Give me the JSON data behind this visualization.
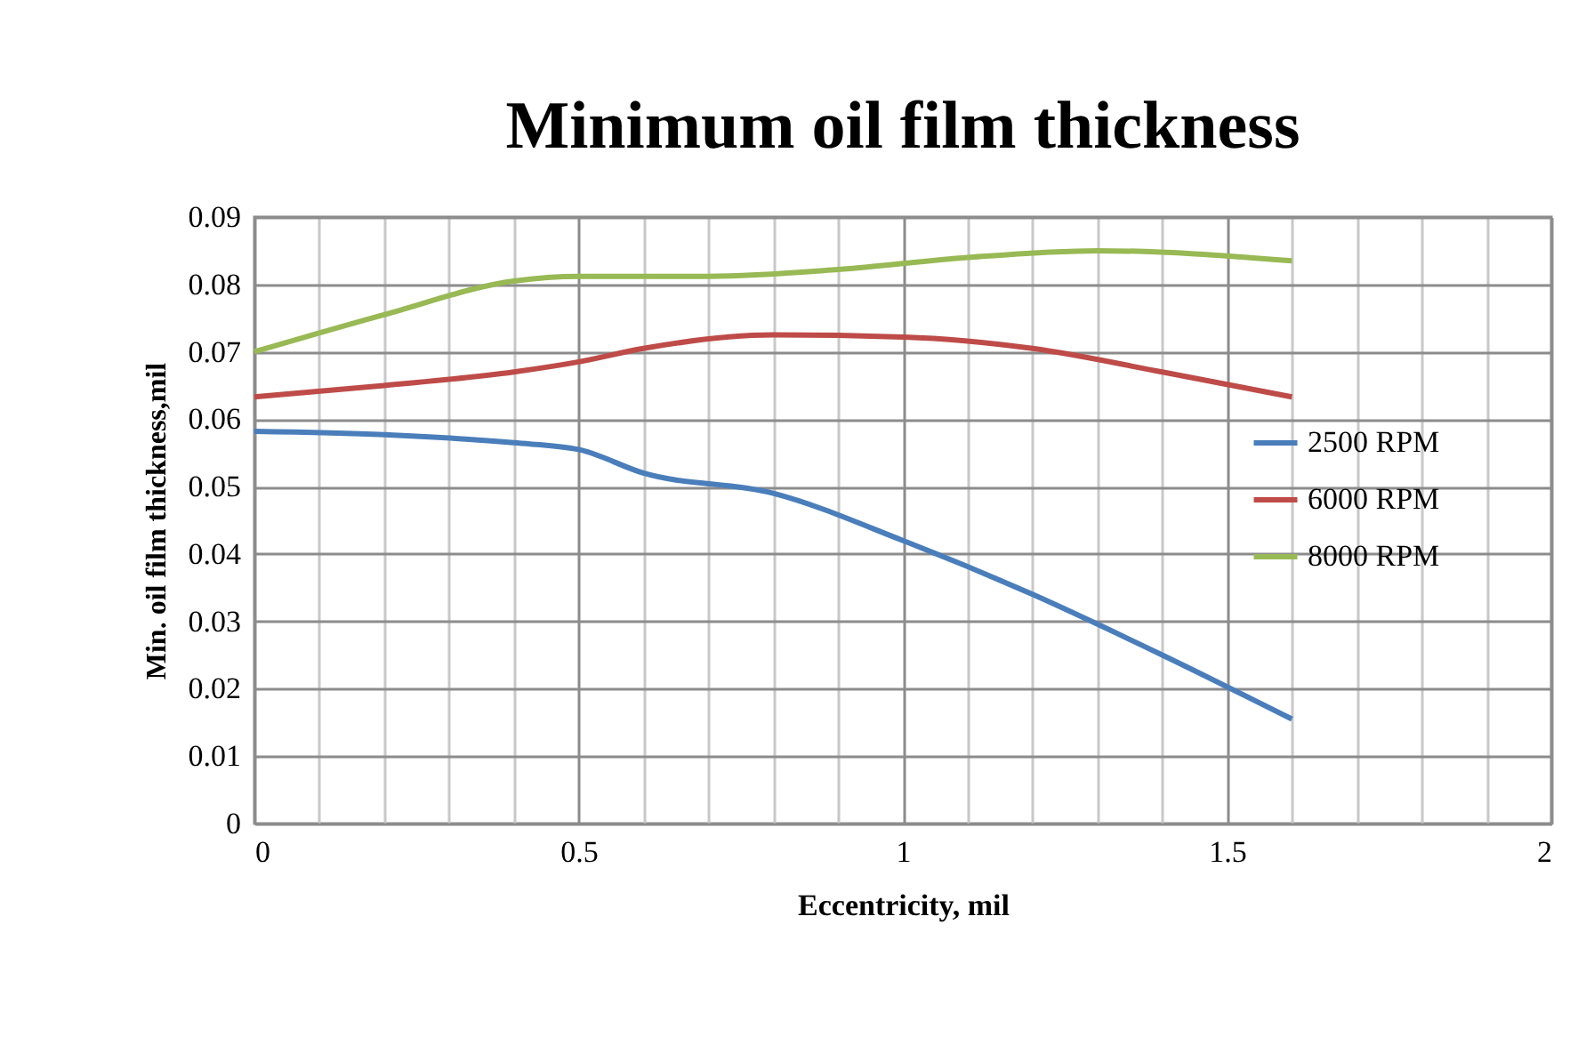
{
  "chart_data": {
    "type": "line",
    "title": "Minimum oil film thickness",
    "xlabel": "Eccentricity,  mil",
    "ylabel": "Min. oil film thickness,mil",
    "xlim": [
      0,
      2
    ],
    "xticks": [
      0,
      {
        "value": 0.1,
        "label": null
      },
      {
        "value": 0.2,
        "label": null
      },
      {
        "value": 0.3,
        "label": null
      },
      {
        "value": 0.4,
        "label": null
      },
      0.5,
      {
        "value": 0.6,
        "label": null
      },
      {
        "value": 0.7,
        "label": null
      },
      {
        "value": 0.8,
        "label": null
      },
      {
        "value": 0.9,
        "label": null
      },
      1,
      {
        "value": 1.1,
        "label": null
      },
      {
        "value": 1.2,
        "label": null
      },
      {
        "value": 1.3,
        "label": null
      },
      {
        "value": 1.4,
        "label": null
      },
      1.5,
      {
        "value": 1.6,
        "label": null
      },
      {
        "value": 1.7,
        "label": null
      },
      {
        "value": 1.8,
        "label": null
      },
      {
        "value": 1.9,
        "label": null
      },
      2
    ],
    "ylim": [
      0,
      0.09
    ],
    "yticks": [
      0,
      0.01,
      0.02,
      0.03,
      0.04,
      0.05,
      0.06,
      0.07,
      0.08,
      0.09
    ],
    "grid": true,
    "legend": "right",
    "line_style": "solid",
    "marker": "none",
    "series": [
      {
        "name": "2500 RPM",
        "color": "#4a7ebb",
        "x": [
          0,
          0.2,
          0.4,
          0.5,
          0.6,
          0.8,
          1.0,
          1.2,
          1.4,
          1.6
        ],
        "values": [
          0.0582,
          0.0577,
          0.0565,
          0.0555,
          0.052,
          0.049,
          0.042,
          0.034,
          0.025,
          0.0155
        ]
      },
      {
        "name": "6000 RPM",
        "color": "#be4b48",
        "x": [
          0,
          0.2,
          0.4,
          0.5,
          0.6,
          0.8,
          1.0,
          1.2,
          1.4,
          1.6
        ],
        "values": [
          0.0633,
          0.065,
          0.067,
          0.0685,
          0.0705,
          0.0725,
          0.0722,
          0.0705,
          0.067,
          0.0633
        ]
      },
      {
        "name": "8000 RPM",
        "color": "#98b954",
        "x": [
          0,
          0.2,
          0.4,
          0.5,
          0.7,
          0.9,
          1.1,
          1.3,
          1.6
        ],
        "values": [
          0.07,
          0.0755,
          0.0805,
          0.0812,
          0.0812,
          0.0822,
          0.084,
          0.085,
          0.0835
        ]
      }
    ]
  }
}
